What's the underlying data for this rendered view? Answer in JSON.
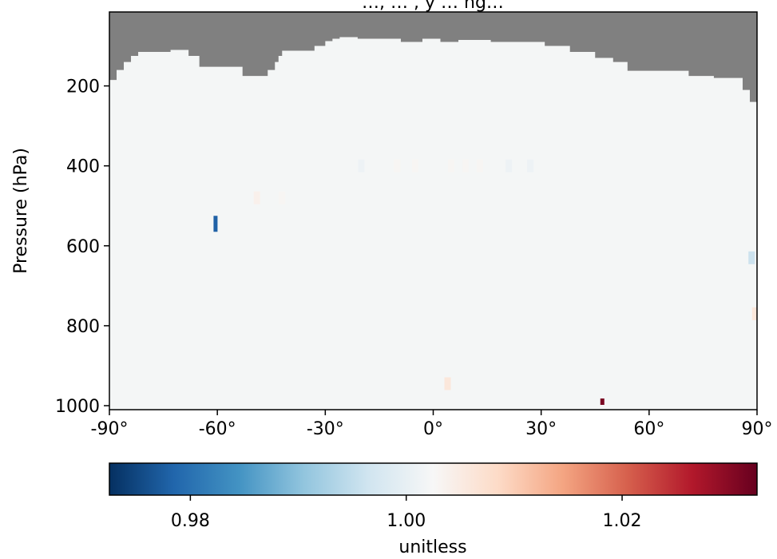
{
  "chart_data": {
    "type": "heatmap",
    "title": "…, … ,  y … ng…",
    "xlabel": "",
    "ylabel": "Pressure (hPa)",
    "x_ticks": [
      {
        "value": -90,
        "label": "-90°"
      },
      {
        "value": -60,
        "label": "-60°"
      },
      {
        "value": -30,
        "label": "-30°"
      },
      {
        "value": 0,
        "label": "0°"
      },
      {
        "value": 30,
        "label": "30°"
      },
      {
        "value": 60,
        "label": "60°"
      },
      {
        "value": 90,
        "label": "90°"
      }
    ],
    "y_ticks": [
      {
        "value": 200,
        "label": "200"
      },
      {
        "value": 400,
        "label": "400"
      },
      {
        "value": 600,
        "label": "600"
      },
      {
        "value": 800,
        "label": "800"
      },
      {
        "value": 1000,
        "label": "1000"
      }
    ],
    "xlim": [
      -90,
      90
    ],
    "ylim": [
      1010,
      15
    ],
    "colorbar": {
      "label": "unitless",
      "range": [
        0.9725,
        1.0325
      ],
      "ticks": [
        {
          "value": 0.98,
          "label": "0.98"
        },
        {
          "value": 1.0,
          "label": "1.00"
        },
        {
          "value": 1.02,
          "label": "1.02"
        }
      ],
      "colormap": "RdBu_r"
    },
    "missing_color": "#808080",
    "background_value": 1.0,
    "missing_top_boundary": [
      {
        "lon": -90,
        "p": 185
      },
      {
        "lon": -88,
        "p": 160
      },
      {
        "lon": -86,
        "p": 140
      },
      {
        "lon": -84,
        "p": 125
      },
      {
        "lon": -82,
        "p": 115
      },
      {
        "lon": -73,
        "p": 110
      },
      {
        "lon": -68,
        "p": 125
      },
      {
        "lon": -65,
        "p": 152
      },
      {
        "lon": -55,
        "p": 152
      },
      {
        "lon": -53,
        "p": 175
      },
      {
        "lon": -47,
        "p": 175
      },
      {
        "lon": -46,
        "p": 160
      },
      {
        "lon": -44,
        "p": 140
      },
      {
        "lon": -43,
        "p": 125
      },
      {
        "lon": -42,
        "p": 112
      },
      {
        "lon": -33,
        "p": 100
      },
      {
        "lon": -30,
        "p": 88
      },
      {
        "lon": -28,
        "p": 82
      },
      {
        "lon": -26,
        "p": 78
      },
      {
        "lon": -21,
        "p": 82
      },
      {
        "lon": -9,
        "p": 90
      },
      {
        "lon": -3,
        "p": 82
      },
      {
        "lon": 2,
        "p": 90
      },
      {
        "lon": 7,
        "p": 85
      },
      {
        "lon": 12,
        "p": 85
      },
      {
        "lon": 16,
        "p": 90
      },
      {
        "lon": 25,
        "p": 90
      },
      {
        "lon": 31,
        "p": 100
      },
      {
        "lon": 38,
        "p": 115
      },
      {
        "lon": 45,
        "p": 130
      },
      {
        "lon": 50,
        "p": 140
      },
      {
        "lon": 54,
        "p": 162
      },
      {
        "lon": 65,
        "p": 162
      },
      {
        "lon": 71,
        "p": 175
      },
      {
        "lon": 78,
        "p": 180
      },
      {
        "lon": 86,
        "p": 210
      },
      {
        "lon": 88,
        "p": 240
      },
      {
        "lon": 90,
        "p": 245
      }
    ],
    "anomalies": [
      {
        "lon": -60.5,
        "p": 545,
        "value": 0.978
      },
      {
        "lon": 47,
        "p": 990,
        "value": 1.031
      },
      {
        "lon": 88.5,
        "p": 630,
        "value": 0.996
      },
      {
        "lon": 89.5,
        "p": 770,
        "value": 1.006
      },
      {
        "lon": -49,
        "p": 480,
        "value": 1.004
      },
      {
        "lon": -46,
        "p": 480,
        "value": 1.002
      },
      {
        "lon": -42,
        "p": 480,
        "value": 1.003
      },
      {
        "lon": -37,
        "p": 400,
        "value": 1.002
      },
      {
        "lon": -30,
        "p": 400,
        "value": 1.002
      },
      {
        "lon": -20,
        "p": 400,
        "value": 1.001
      },
      {
        "lon": -10,
        "p": 400,
        "value": 1.003
      },
      {
        "lon": -5,
        "p": 400,
        "value": 1.003
      },
      {
        "lon": 5,
        "p": 400,
        "value": 1.003
      },
      {
        "lon": 9,
        "p": 400,
        "value": 1.003
      },
      {
        "lon": 13,
        "p": 400,
        "value": 1.003
      },
      {
        "lon": 21,
        "p": 400,
        "value": 1.001
      },
      {
        "lon": 27,
        "p": 400,
        "value": 1.001
      },
      {
        "lon": 4,
        "p": 945,
        "value": 1.006
      },
      {
        "lon": -64.5,
        "p": 590,
        "value": 1.002
      }
    ]
  }
}
